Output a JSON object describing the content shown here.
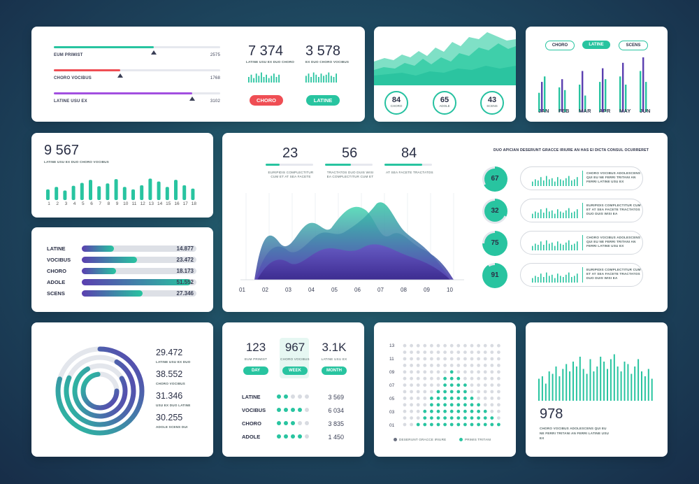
{
  "card1": {
    "rows": [
      {
        "label": "EUM PRIMIST",
        "value": "2575",
        "fill": 0.6,
        "color": "#28c4a0"
      },
      {
        "label": "CHORO VOCIBUS",
        "value": "1768",
        "fill": 0.4,
        "color": "#ef4e54"
      },
      {
        "label": "LATINE USU EX",
        "value": "3102",
        "fill": 0.83,
        "color": "#a24fe0"
      }
    ],
    "stat1": {
      "value": "7 374",
      "caption": "LATINE USU EX DUO CHORO",
      "button": "CHORO"
    },
    "stat2": {
      "value": "3 578",
      "caption": "EX DUO CHORO VOCIBUS",
      "button": "LATINE"
    }
  },
  "card2": {
    "rings": [
      {
        "value": "84",
        "label": "CHORO"
      },
      {
        "value": "65",
        "label": "ADOLE"
      },
      {
        "value": "43",
        "label": "SCENS"
      }
    ]
  },
  "card3": {
    "tabs": [
      "CHORO",
      "LATINE",
      "SCENS"
    ],
    "active_tab": "LATINE",
    "months": [
      "JAN",
      "FEB",
      "MAR",
      "APR",
      "MAY",
      "JUN"
    ]
  },
  "card4": {
    "value": "9 567",
    "caption": "LATINE USU EX DUO CHORO VOCIBUS",
    "ticks": [
      "1",
      "2",
      "3",
      "4",
      "5",
      "6",
      "7",
      "8",
      "9",
      "10",
      "11",
      "12",
      "13",
      "14",
      "15",
      "16",
      "17",
      "18"
    ],
    "bars": [
      0.45,
      0.55,
      0.4,
      0.6,
      0.72,
      0.85,
      0.58,
      0.7,
      0.88,
      0.55,
      0.45,
      0.62,
      0.9,
      0.78,
      0.55,
      0.85,
      0.62,
      0.48
    ]
  },
  "card5": {
    "rows": [
      {
        "label": "LATINE",
        "value": "14.877",
        "fill": 0.28
      },
      {
        "label": "VOCIBUS",
        "value": "23.472",
        "fill": 0.48
      },
      {
        "label": "CHORO",
        "value": "18.173",
        "fill": 0.3
      },
      {
        "label": "ADOLE",
        "value": "51.552",
        "fill": 0.95
      },
      {
        "label": "SCENS",
        "value": "27.346",
        "fill": 0.53
      }
    ]
  },
  "card6": {
    "stats": [
      {
        "value": "23",
        "caption": "EURIPIDIS COMPLECTITUR CUM ET AT SEA FACETE",
        "fill": 0.3
      },
      {
        "value": "56",
        "caption": "TRACTATOS DUO DUIS WISI EA COMPLECTITUR CUM ET",
        "fill": 0.55
      },
      {
        "value": "84",
        "caption": "AT SEA FACETE TRACTATOS",
        "fill": 0.8
      }
    ],
    "x_ticks": [
      "01",
      "02",
      "03",
      "04",
      "05",
      "06",
      "07",
      "08",
      "09",
      "10"
    ],
    "heading": "DUO APICIAN DESERUNT GRACCE IRIURE AN HAS EI DICTA CONSUL OCURRERET",
    "items": [
      {
        "value": "67",
        "text": "CHORO VOCIBUS ADOLESCENS QUI EU NE FERRI TRITANI AN FERRI LATINE USU EX"
      },
      {
        "value": "32",
        "text": "EURIPIDIS COMPLECTITUR CUM ET AT SEA FACETE TRACTATOS DUO DUIS WISI EA"
      },
      {
        "value": "75",
        "text": "CHORO VOCIBUS ADOLESCENS QUI EU NE FERRI TRITANI AN FERRI LATINE USU EX"
      },
      {
        "value": "91",
        "text": "EURIPIDIS COMPLECTITUR CUM ET AT SEA FACETE TRACTATOS DUO DUIS WISI EA"
      }
    ]
  },
  "card7": {
    "items": [
      {
        "value": "29.472",
        "caption": "LATINE USU EX DUO"
      },
      {
        "value": "38.552",
        "caption": "CHORO VOCIBUS"
      },
      {
        "value": "31.346",
        "caption": "USU EX DUO LATINE"
      },
      {
        "value": "30.255",
        "caption": "ADOLE SCENS DUI"
      }
    ]
  },
  "card8": {
    "stats": [
      {
        "value": "123",
        "caption": "EUM PRIMIST",
        "button": "DAY"
      },
      {
        "value": "967",
        "caption": "CHORO VOCIBUS",
        "button": "WEEK"
      },
      {
        "value": "3.1K",
        "caption": "LATINE USU EX",
        "button": "MONTH"
      }
    ],
    "rows": [
      {
        "label": "LATINE",
        "value": "3 569",
        "dots": 2
      },
      {
        "label": "VOCIBUS",
        "value": "6 034",
        "dots": 4
      },
      {
        "label": "CHORO",
        "value": "3 835",
        "dots": 3
      },
      {
        "label": "ADOLE",
        "value": "1 450",
        "dots": 4
      }
    ]
  },
  "card9": {
    "y_ticks": [
      "13",
      "11",
      "09",
      "07",
      "05",
      "03",
      "01"
    ],
    "legend": [
      "DESERUNT GRACCE IRIURE",
      "PRIMIS TRITANI"
    ],
    "column_fill": [
      0,
      0,
      1,
      3,
      5,
      6,
      8,
      9,
      8,
      7,
      5,
      4,
      3,
      2,
      1
    ]
  },
  "card10": {
    "value": "978",
    "text": "CHORO VOCIBUS ADOLESCENS QUI EU NE FERRI TRITANI AN FERRI LATINE USU EX"
  },
  "colors": {
    "teal": "#28c4a0",
    "purple": "#5b3fb0",
    "red": "#ef4e54"
  }
}
